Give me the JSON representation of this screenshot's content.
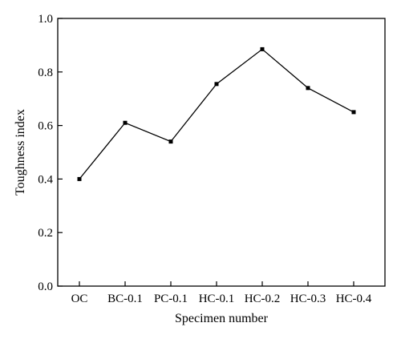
{
  "chart_data": {
    "type": "line",
    "categories": [
      "OC",
      "BC-0.1",
      "PC-0.1",
      "HC-0.1",
      "HC-0.2",
      "HC-0.3",
      "HC-0.4"
    ],
    "series": [
      {
        "values": [
          0.4,
          0.61,
          0.54,
          0.755,
          0.885,
          0.74,
          0.65
        ]
      }
    ],
    "xlabel": "Specimen number",
    "ylabel": "Toughness index",
    "ylim": [
      0.0,
      1.0
    ],
    "yticks": [
      "0.0",
      "0.2",
      "0.4",
      "0.6",
      "0.8",
      "1.0"
    ],
    "grid": false,
    "marker": "square",
    "color": "#000000"
  }
}
